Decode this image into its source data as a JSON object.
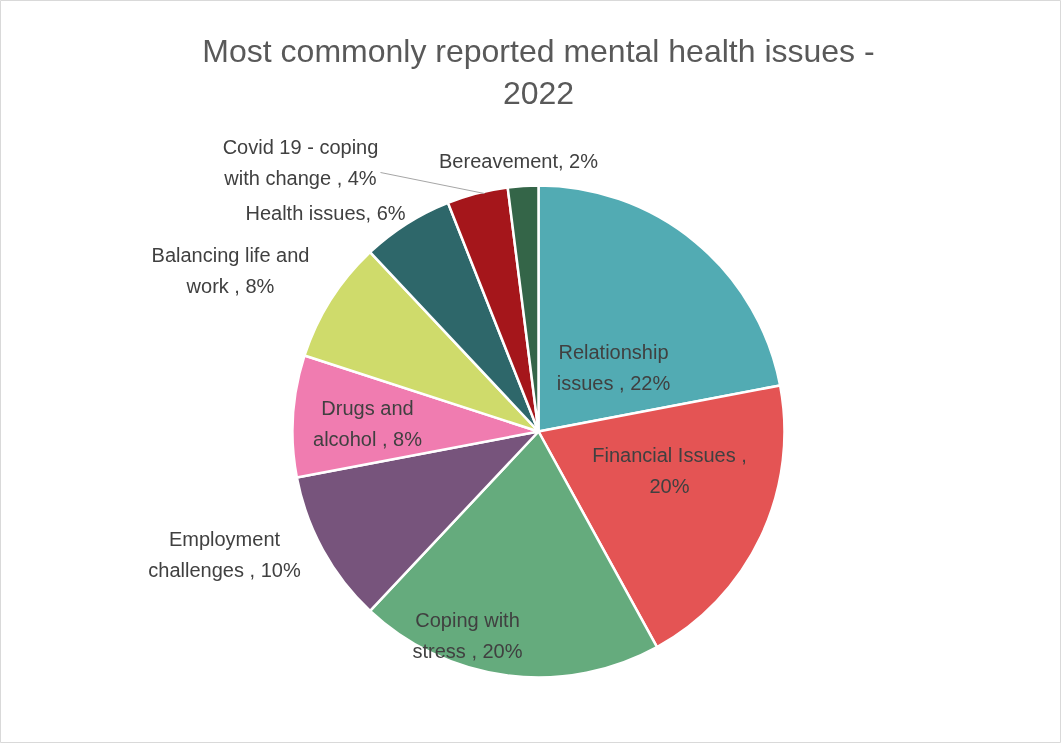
{
  "chart_data": {
    "type": "pie",
    "title": "Most commonly reported mental health issues - 2022",
    "categories": [
      "Relationship issues",
      "Financial Issues",
      "Coping with stress",
      "Employment challenges",
      "Drugs and alcohol",
      "Balancing life and work",
      "Health issues",
      "Covid 19 - coping with change",
      "Bereavement"
    ],
    "values": [
      22,
      20,
      20,
      10,
      8,
      8,
      6,
      4,
      2
    ],
    "value_labels": [
      " , 22%",
      " , 20%",
      " , 20%",
      " , 10%",
      " , 8%",
      " , 8%",
      ", 6%",
      " , 4%",
      ", 2%"
    ],
    "colors": [
      "#52abb3",
      "#e45454",
      "#65ab7d",
      "#77547c",
      "#f07cb0",
      "#cfdb6b",
      "#2e676a",
      "#a5161b",
      "#346548"
    ]
  }
}
